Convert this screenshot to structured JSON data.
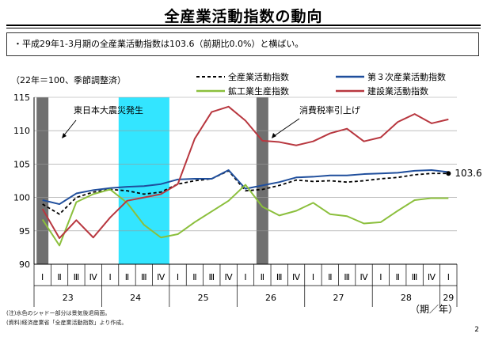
{
  "page": {
    "title": "全産業活動指数の動向",
    "summary": "・平成29年1-3月期の全産業活動指数は103.6（前期比0.0%）と横ばい。",
    "unit_note": "（22年＝100、季節調整済）",
    "period_label": "（期／年）",
    "footnote_1": "(注)水色のシャドー部分は景気後退局面。",
    "footnote_2": "(資料)経済産業省「全産業活動指数」より作成。",
    "page_number": "2",
    "end_value_label": "103.6"
  },
  "annotations": {
    "earthquake": "東日本大震災発生",
    "tax_hike": "消費税率引上げ"
  },
  "chart_data": {
    "type": "line",
    "ylim": [
      90,
      115
    ],
    "yticks": [
      90,
      95,
      100,
      105,
      110,
      115
    ],
    "quarters": [
      "Ⅰ",
      "Ⅱ",
      "Ⅲ",
      "Ⅳ",
      "Ⅰ",
      "Ⅱ",
      "Ⅲ",
      "Ⅳ",
      "Ⅰ",
      "Ⅱ",
      "Ⅲ",
      "Ⅳ",
      "Ⅰ",
      "Ⅱ",
      "Ⅲ",
      "Ⅳ",
      "Ⅰ",
      "Ⅱ",
      "Ⅲ",
      "Ⅳ",
      "Ⅰ",
      "Ⅱ",
      "Ⅲ",
      "Ⅳ",
      "Ⅰ"
    ],
    "years": [
      {
        "label": "23",
        "start": 0,
        "count": 4
      },
      {
        "label": "24",
        "start": 4,
        "count": 4
      },
      {
        "label": "25",
        "start": 8,
        "count": 4
      },
      {
        "label": "26",
        "start": 12,
        "count": 4
      },
      {
        "label": "27",
        "start": 16,
        "count": 4
      },
      {
        "label": "28",
        "start": 20,
        "count": 4
      },
      {
        "label": "29",
        "start": 24,
        "count": 1
      }
    ],
    "shaded_periods": [
      {
        "type": "event",
        "start": 0,
        "end": 0,
        "color": "#707070"
      },
      {
        "type": "recession",
        "start": 5,
        "end": 7,
        "color": "#33e5ff"
      },
      {
        "type": "event",
        "start": 13,
        "end": 13,
        "color": "#707070"
      }
    ],
    "series": [
      {
        "name": "全産業活動指数",
        "color": "#000000",
        "style": "dashed",
        "values": [
          99.0,
          97.5,
          100.0,
          100.8,
          101.2,
          101.0,
          100.5,
          100.8,
          102.0,
          102.5,
          102.8,
          104.0,
          101.0,
          101.2,
          101.8,
          102.6,
          102.4,
          102.5,
          102.3,
          102.5,
          102.8,
          103.0,
          103.4,
          103.6,
          103.6
        ]
      },
      {
        "name": "第３次産業活動指数",
        "color": "#1f4e9c",
        "style": "solid",
        "values": [
          99.6,
          99.0,
          100.6,
          101.1,
          101.4,
          101.6,
          101.7,
          102.0,
          102.7,
          102.8,
          102.8,
          104.1,
          101.3,
          101.8,
          102.3,
          103.0,
          103.1,
          103.3,
          103.3,
          103.5,
          103.6,
          103.7,
          104.0,
          104.1,
          103.8
        ]
      },
      {
        "name": "鉱工業生産指数",
        "color": "#8bbf3c",
        "style": "solid",
        "values": [
          96.7,
          92.8,
          99.3,
          100.5,
          101.2,
          99.2,
          95.9,
          94.0,
          94.5,
          96.3,
          97.9,
          99.5,
          101.9,
          98.6,
          97.3,
          98.0,
          99.2,
          97.5,
          97.2,
          96.1,
          96.3,
          98.0,
          99.6,
          99.9,
          99.9
        ]
      },
      {
        "name": "建設業活動指数",
        "color": "#b8373f",
        "style": "solid",
        "values": [
          98.3,
          93.9,
          96.6,
          94.0,
          97.0,
          99.5,
          100.0,
          100.5,
          102.0,
          108.8,
          112.8,
          113.6,
          111.5,
          108.5,
          108.3,
          107.8,
          108.4,
          109.6,
          110.3,
          108.4,
          109.0,
          111.3,
          112.5,
          111.1,
          111.7
        ]
      }
    ]
  }
}
